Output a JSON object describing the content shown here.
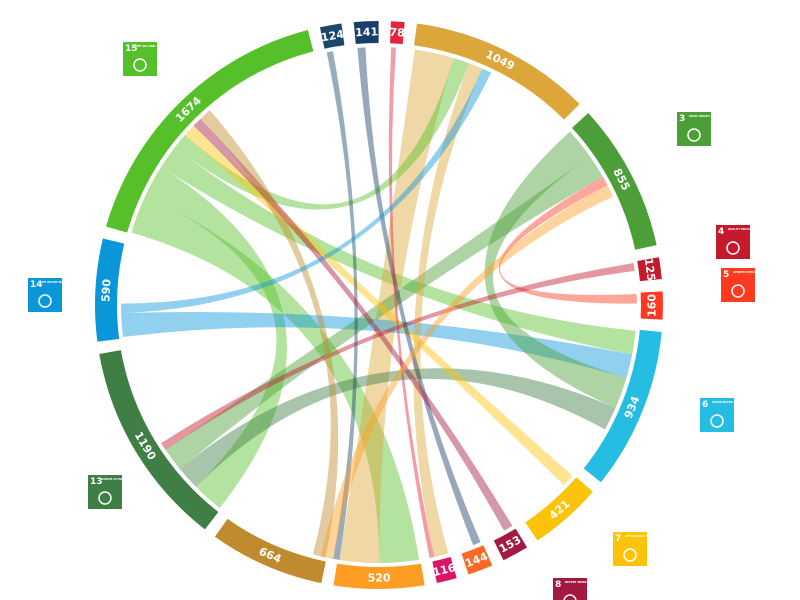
{
  "chart_data": {
    "type": "chord",
    "segments": [
      {
        "value": 124,
        "color": "#19486a"
      },
      {
        "value": 141,
        "color": "#1a3e6b"
      },
      {
        "value": 78,
        "color": "#e5243b"
      },
      {
        "value": 1049,
        "color": "#dda63a"
      },
      {
        "value": 855,
        "color": "#4c9f38"
      },
      {
        "value": 125,
        "color": "#c5192d"
      },
      {
        "value": 160,
        "color": "#ff3a21"
      },
      {
        "value": 934,
        "color": "#26bde2"
      },
      {
        "value": 421,
        "color": "#fcc30b"
      },
      {
        "value": 153,
        "color": "#a21942"
      },
      {
        "value": 144,
        "color": "#fd6925"
      },
      {
        "value": 116,
        "color": "#dd1367"
      },
      {
        "value": 520,
        "color": "#fd9d24"
      },
      {
        "value": 664,
        "color": "#bf8b2e"
      },
      {
        "value": 1190,
        "color": "#3f7e44"
      },
      {
        "value": 590,
        "color": "#0a97d9"
      },
      {
        "value": 1674,
        "color": "#56c02b"
      }
    ],
    "links": [
      {
        "source": 16,
        "target": 12,
        "value": 250
      },
      {
        "source": 16,
        "target": 14,
        "value": 200
      },
      {
        "source": 16,
        "target": 7,
        "value": 150
      },
      {
        "source": 3,
        "target": 12,
        "value": 250
      },
      {
        "source": 15,
        "target": 7,
        "value": 150
      },
      {
        "source": 4,
        "target": 7,
        "value": 200
      },
      {
        "source": 14,
        "target": 7,
        "value": 150
      },
      {
        "source": 16,
        "target": 3,
        "value": 100
      },
      {
        "source": 4,
        "target": 14,
        "value": 150
      },
      {
        "source": 3,
        "target": 11,
        "value": 90
      },
      {
        "source": 8,
        "target": 16,
        "value": 80
      },
      {
        "source": 6,
        "target": 4,
        "value": 60
      },
      {
        "source": 5,
        "target": 14,
        "value": 50
      },
      {
        "source": 0,
        "target": 12,
        "value": 40
      },
      {
        "source": 1,
        "target": 10,
        "value": 50
      },
      {
        "source": 2,
        "target": 11,
        "value": 30
      },
      {
        "source": 9,
        "target": 16,
        "value": 60
      },
      {
        "source": 13,
        "target": 16,
        "value": 80
      },
      {
        "source": 15,
        "target": 3,
        "value": 60
      },
      {
        "source": 12,
        "target": 4,
        "value": 80
      }
    ],
    "icons": [
      {
        "number": 15,
        "label": "LIFE ON LAND",
        "color": "#56c02b"
      },
      {
        "number": 3,
        "label": "GOOD HEALTH AND WELL-BEING",
        "color": "#4c9f38"
      },
      {
        "number": 4,
        "label": "QUALITY EDUCATION",
        "color": "#c5192d"
      },
      {
        "number": 5,
        "label": "GENDER EQUALITY",
        "color": "#ff3a21"
      },
      {
        "number": 6,
        "label": "CLEAN WATER AND SANITATION",
        "color": "#26bde2"
      },
      {
        "number": 7,
        "label": "AFFORDABLE AND CLEAN ENERGY",
        "color": "#fcc30b"
      },
      {
        "number": 8,
        "label": "DECENT WORK AND ECONOMIC GROWTH",
        "color": "#a21942"
      },
      {
        "number": 13,
        "label": "CLIMATE ACTION",
        "color": "#3f7e44"
      },
      {
        "number": 14,
        "label": "LIFE BELOW WATER",
        "color": "#0a97d9"
      }
    ]
  }
}
